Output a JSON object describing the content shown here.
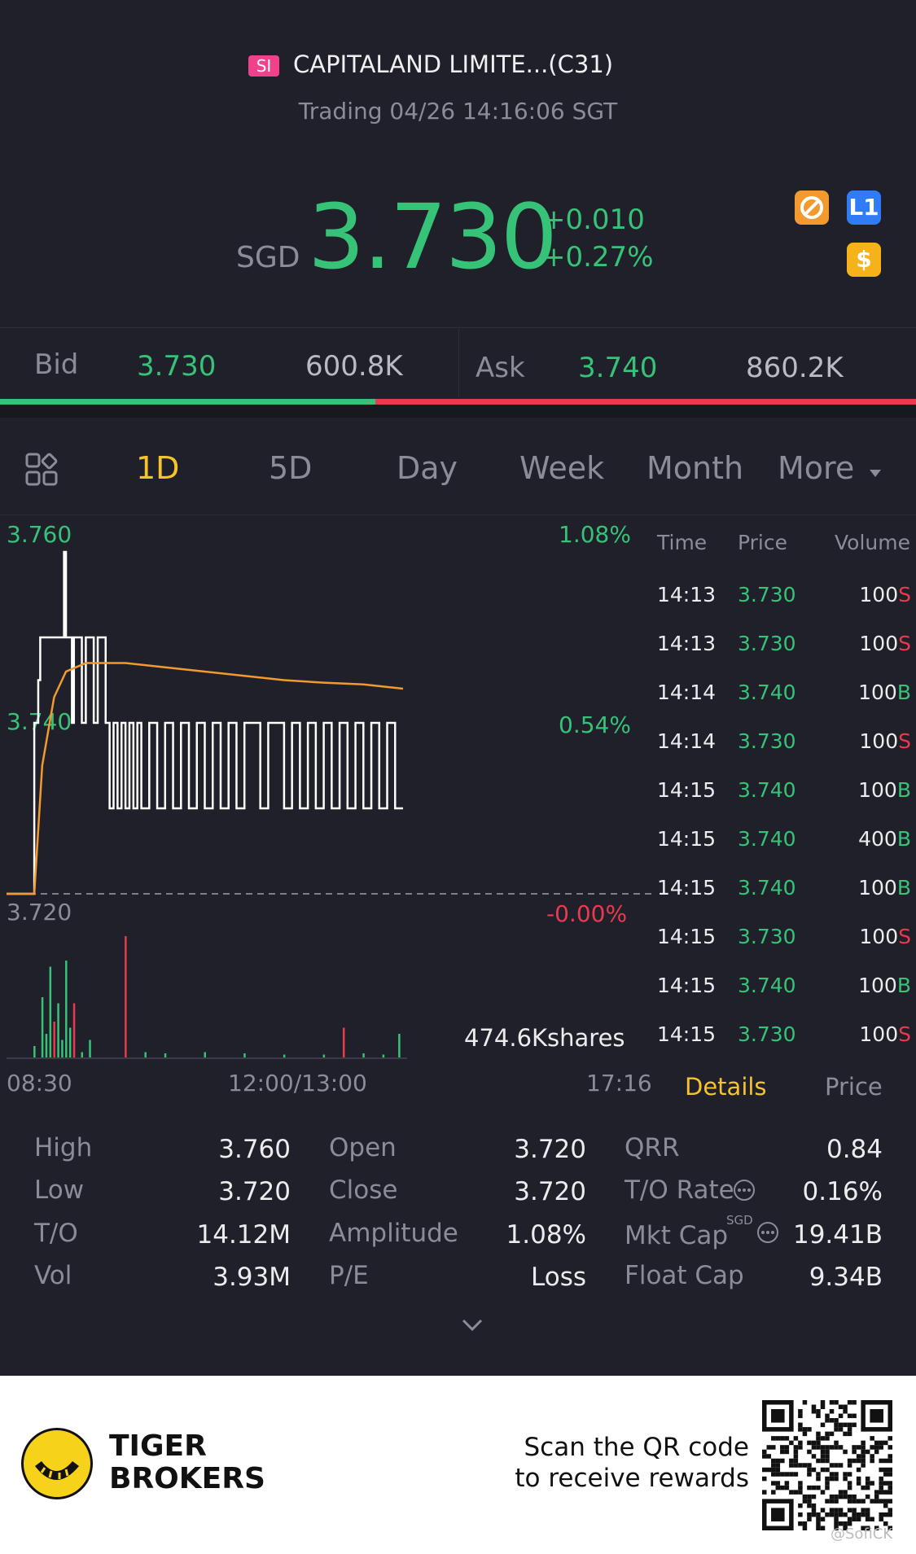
{
  "header": {
    "badge": "SI",
    "title": "CAPITALAND LIMITE...(C31)",
    "status": "Trading 04/26 14:16:06 SGT",
    "currency": "SGD",
    "price": "3.730",
    "change": "+0.010",
    "change_pct": "+0.27%",
    "icons": [
      "restricted-icon",
      "level1-icon",
      "dollar-icon"
    ],
    "level_badge": "L1",
    "dollar_badge": "$"
  },
  "quote": {
    "bid_label": "Bid",
    "bid_price": "3.730",
    "bid_size": "600.8K",
    "ask_label": "Ask",
    "ask_price": "3.740",
    "ask_size": "860.2K",
    "bid_ratio": 0.41
  },
  "tabs": [
    "1D",
    "5D",
    "Day",
    "Week",
    "Month",
    "More"
  ],
  "active_tab": "1D",
  "chart": {
    "y_high": "3.760",
    "y_mid": "3.740",
    "y_low": "3.720",
    "pct_high": "1.08%",
    "pct_mid": "0.54%",
    "pct_low": "-0.00%",
    "volume_label": "474.6Kshares",
    "x_start": "08:30",
    "x_mid": "12:00/13:00",
    "x_end": "17:16"
  },
  "chart_data": {
    "type": "line",
    "title": "",
    "xlabel": "",
    "ylabel": "",
    "x_ticks": [
      "08:30",
      "12:00/13:00",
      "17:16"
    ],
    "ylim": [
      3.72,
      3.76
    ],
    "prev_close": 3.72,
    "series": [
      {
        "name": "",
        "color": "#ffffff",
        "x_frac": [
          0.0,
          0.065,
          0.07,
          0.08,
          0.085,
          0.14,
          0.145,
          0.15,
          0.16,
          0.165,
          0.17,
          0.18,
          0.19,
          0.2,
          0.21,
          0.22,
          0.23,
          0.24,
          0.25,
          0.26,
          0.27,
          0.28,
          0.29,
          0.3,
          0.31,
          0.32,
          0.33,
          0.34,
          0.36,
          0.38,
          0.4,
          0.42,
          0.44,
          0.46,
          0.48,
          0.5,
          0.52,
          0.54,
          0.56,
          0.58,
          0.6,
          0.62,
          0.64,
          0.66,
          0.68,
          0.7,
          0.72,
          0.74,
          0.76,
          0.78,
          0.8,
          0.82,
          0.84,
          0.86,
          0.88,
          0.9,
          0.92,
          0.94,
          0.96,
          0.98,
          1.0
        ],
        "y": [
          3.72,
          3.72,
          3.74,
          3.745,
          3.75,
          3.75,
          3.76,
          3.75,
          3.75,
          3.74,
          3.75,
          3.75,
          3.74,
          3.75,
          3.75,
          3.74,
          3.75,
          3.75,
          3.74,
          3.73,
          3.74,
          3.73,
          3.74,
          3.73,
          3.74,
          3.73,
          3.74,
          3.73,
          3.74,
          3.73,
          3.74,
          3.73,
          3.74,
          3.73,
          3.74,
          3.73,
          3.74,
          3.73,
          3.74,
          3.73,
          3.74,
          3.74,
          3.73,
          3.74,
          3.74,
          3.73,
          3.74,
          3.73,
          3.74,
          3.73,
          3.74,
          3.73,
          3.74,
          3.73,
          3.74,
          3.73,
          3.74,
          3.73,
          3.74,
          3.73,
          3.73
        ]
      },
      {
        "name": "",
        "color": "#f29a2e",
        "x_frac": [
          0.0,
          0.07,
          0.09,
          0.12,
          0.15,
          0.2,
          0.25,
          0.3,
          0.4,
          0.5,
          0.6,
          0.7,
          0.8,
          0.9,
          1.0
        ],
        "y": [
          3.72,
          3.72,
          3.735,
          3.743,
          3.746,
          3.747,
          3.747,
          3.747,
          3.7465,
          3.746,
          3.7455,
          3.745,
          3.7447,
          3.7445,
          3.744
        ]
      }
    ],
    "volume": {
      "x_frac": [
        0.07,
        0.09,
        0.1,
        0.11,
        0.12,
        0.13,
        0.14,
        0.15,
        0.16,
        0.17,
        0.19,
        0.21,
        0.3,
        0.35,
        0.4,
        0.5,
        0.6,
        0.7,
        0.8,
        0.85,
        0.9,
        0.95,
        0.99
      ],
      "values": [
        20,
        100,
        40,
        150,
        60,
        90,
        30,
        160,
        50,
        90,
        10,
        30,
        200,
        10,
        8,
        10,
        8,
        6,
        6,
        50,
        8,
        6,
        40
      ],
      "colors": [
        "g",
        "g",
        "g",
        "g",
        "r",
        "g",
        "g",
        "g",
        "g",
        "r",
        "g",
        "g",
        "r",
        "g",
        "g",
        "g",
        "g",
        "g",
        "g",
        "r",
        "g",
        "g",
        "g"
      ]
    }
  },
  "ticks": {
    "headers": [
      "Time",
      "Price",
      "Volume"
    ],
    "rows": [
      {
        "time": "14:13",
        "price": "3.730",
        "vol": "100",
        "side": "S"
      },
      {
        "time": "14:13",
        "price": "3.730",
        "vol": "100",
        "side": "S"
      },
      {
        "time": "14:14",
        "price": "3.740",
        "vol": "100",
        "side": "B"
      },
      {
        "time": "14:14",
        "price": "3.730",
        "vol": "100",
        "side": "S"
      },
      {
        "time": "14:15",
        "price": "3.740",
        "vol": "100",
        "side": "B"
      },
      {
        "time": "14:15",
        "price": "3.740",
        "vol": "400",
        "side": "B"
      },
      {
        "time": "14:15",
        "price": "3.740",
        "vol": "100",
        "side": "B"
      },
      {
        "time": "14:15",
        "price": "3.730",
        "vol": "100",
        "side": "S"
      },
      {
        "time": "14:15",
        "price": "3.740",
        "vol": "100",
        "side": "B"
      },
      {
        "time": "14:15",
        "price": "3.730",
        "vol": "100",
        "side": "S"
      }
    ],
    "tab_details": "Details",
    "tab_price": "Price"
  },
  "stats": {
    "high_label": "High",
    "high": "3.760",
    "low_label": "Low",
    "low": "3.720",
    "to_label": "T/O",
    "to": "14.12M",
    "vol_label": "Vol",
    "vol": "3.93M",
    "open_label": "Open",
    "open": "3.720",
    "close_label": "Close",
    "close": "3.720",
    "amp_label": "Amplitude",
    "amp": "1.08%",
    "pe_label": "P/E",
    "pe": "Loss",
    "qrr_label": "QRR",
    "qrr": "0.84",
    "torate_label": "T/O Rate",
    "torate": "0.16%",
    "mktcap_label": "Mkt Cap",
    "mktcap_sup": "SGD",
    "mktcap": "19.41B",
    "floatcap_label": "Float Cap",
    "floatcap": "9.34B"
  },
  "footer": {
    "brand_line1": "TIGER",
    "brand_line2": "BROKERS",
    "scan_line1": "Scan the QR code",
    "scan_line2": "to receive rewards",
    "watermark": "@SofiCK"
  },
  "colors": {
    "up": "#36c378",
    "down": "#ea3a4e",
    "accent": "#f6c42a",
    "avg_line": "#f29a2e"
  }
}
